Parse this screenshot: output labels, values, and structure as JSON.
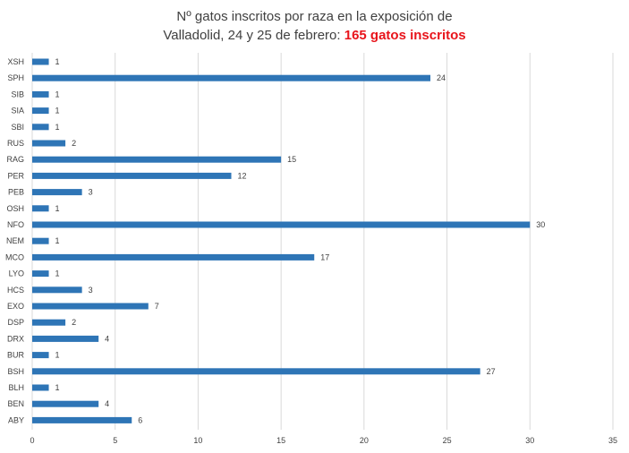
{
  "chart_data": {
    "type": "bar",
    "orientation": "horizontal",
    "title": {
      "line1": "Nº gatos inscritos por raza en la exposición de",
      "line2_prefix": "Valladolid, 24 y 25 de febrero: ",
      "line2_highlight": "165 gatos inscritos"
    },
    "xlabel": "",
    "ylabel": "",
    "categories": [
      "XSH",
      "SPH",
      "SIB",
      "SIA",
      "SBI",
      "RUS",
      "RAG",
      "PER",
      "PEB",
      "OSH",
      "NFO",
      "NEM",
      "MCO",
      "LYO",
      "HCS",
      "EXO",
      "DSP",
      "DRX",
      "BUR",
      "BSH",
      "BLH",
      "BEN",
      "ABY"
    ],
    "values": [
      1,
      24,
      1,
      1,
      1,
      2,
      15,
      12,
      3,
      1,
      30,
      1,
      17,
      1,
      3,
      7,
      2,
      4,
      1,
      27,
      1,
      4,
      6
    ],
    "xlim": [
      0,
      35
    ],
    "xticks": [
      0,
      5,
      10,
      15,
      20,
      25,
      30,
      35
    ],
    "grid": true,
    "legend": "none",
    "data_labels": true
  },
  "colors": {
    "bar": "#2e75b6",
    "grid": "#d9d9d9",
    "text": "#404040",
    "highlight": "#e8141b"
  }
}
